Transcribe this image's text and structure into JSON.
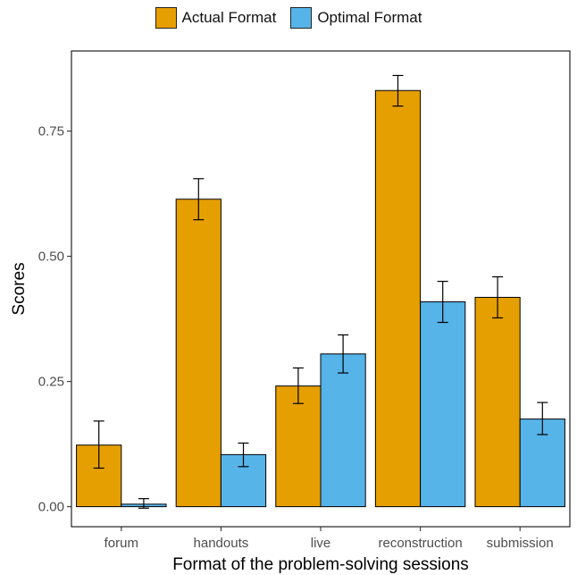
{
  "chart_data": {
    "type": "bar",
    "categories": [
      "forum",
      "handouts",
      "live",
      "reconstruction",
      "submission"
    ],
    "series": [
      {
        "name": "Actual Format",
        "color": "#E69F00",
        "values": [
          0.123,
          0.614,
          0.241,
          0.831,
          0.418
        ],
        "error_low": [
          0.077,
          0.573,
          0.206,
          0.8,
          0.377
        ],
        "error_high": [
          0.171,
          0.655,
          0.277,
          0.861,
          0.459
        ]
      },
      {
        "name": "Optimal Format",
        "color": "#56B4E9",
        "values": [
          0.005,
          0.104,
          0.305,
          0.409,
          0.175
        ],
        "error_low": [
          -0.003,
          0.08,
          0.267,
          0.368,
          0.144
        ],
        "error_high": [
          0.016,
          0.127,
          0.343,
          0.45,
          0.208
        ]
      }
    ],
    "xlabel": "Format of the problem-solving sessions",
    "ylabel": "Scores",
    "yticks": [
      0.0,
      0.25,
      0.5,
      0.75
    ],
    "ytick_labels": [
      "0.00",
      "0.25",
      "0.50",
      "0.75"
    ],
    "ylim": [
      -0.04,
      0.91
    ],
    "legend_position": "top",
    "grid": false
  }
}
